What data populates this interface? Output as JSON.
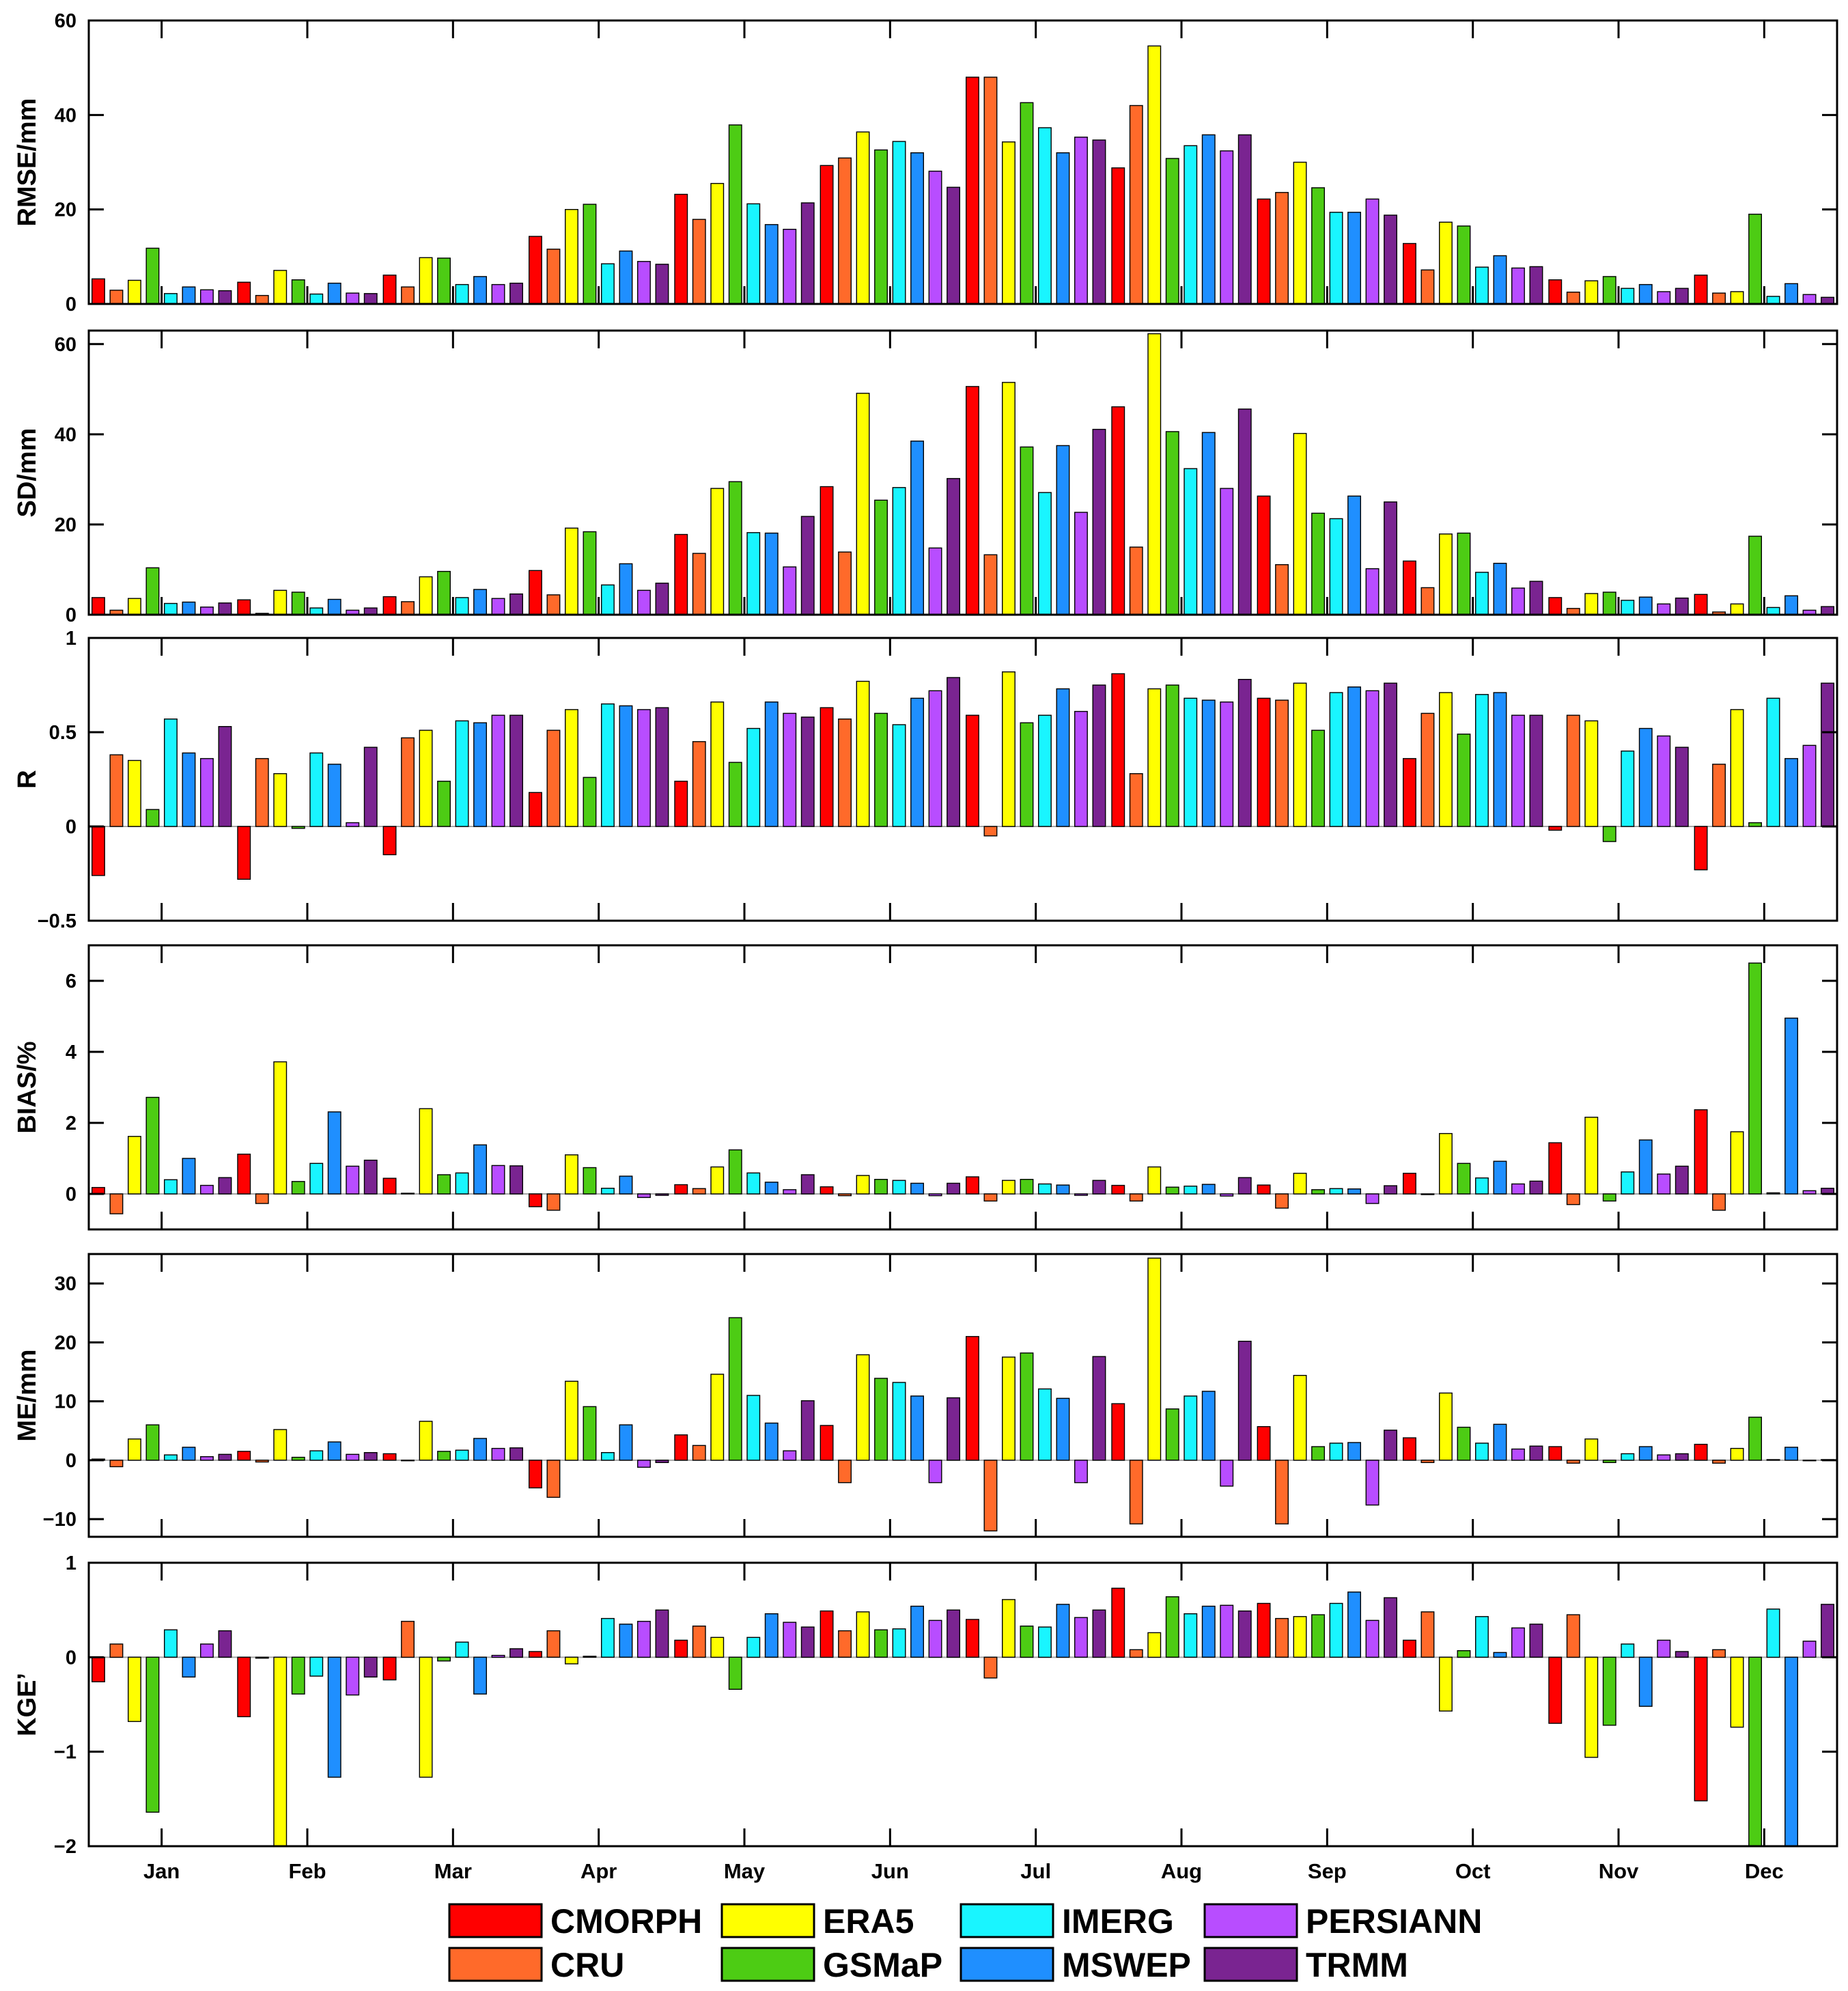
{
  "chart_data": [
    {
      "type": "bar",
      "panel": "rmse",
      "ylabel": "RMSE/mm",
      "ylim": [
        0,
        60
      ],
      "yticks": [
        0,
        20,
        40,
        60
      ],
      "ytick_labels": [
        "0",
        "20",
        "40",
        "60"
      ],
      "categories": [
        "Jan",
        "Feb",
        "Mar",
        "Apr",
        "May",
        "Jun",
        "Jul",
        "Aug",
        "Sep",
        "Oct",
        "Nov",
        "Dec"
      ],
      "series": [
        {
          "name": "CMORPH",
          "values": [
            5.3,
            4.6,
            6.1,
            14.3,
            23.2,
            29.3,
            48.0,
            28.8,
            22.2,
            12.8,
            5.1,
            6.1
          ]
        },
        {
          "name": "CRU",
          "values": [
            2.9,
            1.8,
            3.6,
            11.6,
            17.9,
            30.9,
            48.0,
            42.0,
            23.6,
            7.2,
            2.5,
            2.3
          ]
        },
        {
          "name": "ERA5",
          "values": [
            5.0,
            7.1,
            9.8,
            20.0,
            25.5,
            36.4,
            34.3,
            54.6,
            30.0,
            17.3,
            4.9,
            2.6
          ]
        },
        {
          "name": "GSMaP",
          "values": [
            11.8,
            5.1,
            9.7,
            21.1,
            37.9,
            32.6,
            42.6,
            30.8,
            24.6,
            16.5,
            5.8,
            19.0
          ]
        },
        {
          "name": "IMERG",
          "values": [
            2.2,
            2.1,
            4.1,
            8.5,
            21.2,
            34.4,
            37.3,
            33.5,
            19.4,
            7.8,
            3.3,
            1.6
          ]
        },
        {
          "name": "MSWEP",
          "values": [
            3.6,
            4.4,
            5.8,
            11.2,
            16.8,
            32.0,
            32.0,
            35.8,
            19.4,
            10.2,
            4.1,
            4.3
          ]
        },
        {
          "name": "PERSIANN",
          "values": [
            3.0,
            2.3,
            4.1,
            9.0,
            15.8,
            28.1,
            35.3,
            32.4,
            22.2,
            7.6,
            2.6,
            2.0
          ]
        },
        {
          "name": "TRMM",
          "values": [
            2.8,
            2.2,
            4.4,
            8.4,
            21.4,
            24.7,
            34.7,
            35.8,
            18.8,
            7.9,
            3.3,
            1.4
          ]
        }
      ]
    },
    {
      "type": "bar",
      "panel": "sd",
      "ylabel": "SD/mm",
      "ylim": [
        0,
        63
      ],
      "yticks": [
        0,
        20,
        40,
        60
      ],
      "ytick_labels": [
        "0",
        "20",
        "40",
        "60"
      ],
      "categories": [
        "Jan",
        "Feb",
        "Mar",
        "Apr",
        "May",
        "Jun",
        "Jul",
        "Aug",
        "Sep",
        "Oct",
        "Nov",
        "Dec"
      ],
      "series": [
        {
          "name": "CMORPH",
          "values": [
            3.8,
            3.3,
            4.0,
            9.8,
            17.8,
            28.4,
            50.6,
            46.1,
            26.3,
            11.9,
            3.8,
            4.5
          ]
        },
        {
          "name": "CRU",
          "values": [
            1.0,
            0.3,
            2.9,
            4.4,
            13.6,
            13.9,
            13.3,
            15.0,
            11.1,
            6.0,
            1.4,
            0.6
          ]
        },
        {
          "name": "ERA5",
          "values": [
            3.6,
            5.4,
            8.4,
            19.2,
            28.0,
            49.1,
            51.5,
            62.3,
            40.2,
            17.9,
            4.7,
            2.4
          ]
        },
        {
          "name": "GSMaP",
          "values": [
            10.4,
            5.0,
            9.6,
            18.4,
            29.5,
            25.4,
            37.2,
            40.6,
            22.5,
            18.1,
            5.0,
            17.4
          ]
        },
        {
          "name": "IMERG",
          "values": [
            2.5,
            1.5,
            3.8,
            6.6,
            18.2,
            28.2,
            27.1,
            32.4,
            21.3,
            9.4,
            3.2,
            1.6
          ]
        },
        {
          "name": "MSWEP",
          "values": [
            2.8,
            3.4,
            5.6,
            11.3,
            18.1,
            38.5,
            37.5,
            40.4,
            26.3,
            11.4,
            3.9,
            4.2
          ]
        },
        {
          "name": "PERSIANN",
          "values": [
            1.7,
            1.0,
            3.6,
            5.4,
            10.6,
            14.8,
            22.7,
            28.0,
            10.2,
            5.9,
            2.4,
            1.0
          ]
        },
        {
          "name": "TRMM",
          "values": [
            2.6,
            1.5,
            4.6,
            7.0,
            21.8,
            30.2,
            41.1,
            45.6,
            25.0,
            7.4,
            3.7,
            1.8
          ]
        }
      ]
    },
    {
      "type": "bar",
      "panel": "r",
      "ylabel": "R",
      "ylim": [
        -0.5,
        1
      ],
      "yticks": [
        -0.5,
        0,
        0.5,
        1
      ],
      "ytick_labels": [
        "−0.5",
        "0",
        "0.5",
        "1"
      ],
      "categories": [
        "Jan",
        "Feb",
        "Mar",
        "Apr",
        "May",
        "Jun",
        "Jul",
        "Aug",
        "Sep",
        "Oct",
        "Nov",
        "Dec"
      ],
      "series": [
        {
          "name": "CMORPH",
          "values": [
            -0.26,
            -0.28,
            -0.15,
            0.18,
            0.24,
            0.63,
            0.59,
            0.81,
            0.68,
            0.36,
            -0.02,
            -0.23
          ]
        },
        {
          "name": "CRU",
          "values": [
            0.38,
            0.36,
            0.47,
            0.51,
            0.45,
            0.57,
            -0.05,
            0.28,
            0.67,
            0.6,
            0.59,
            0.33
          ]
        },
        {
          "name": "ERA5",
          "values": [
            0.35,
            0.28,
            0.51,
            0.62,
            0.66,
            0.77,
            0.82,
            0.73,
            0.76,
            0.71,
            0.56,
            0.62
          ]
        },
        {
          "name": "GSMaP",
          "values": [
            0.09,
            -0.01,
            0.24,
            0.26,
            0.34,
            0.6,
            0.55,
            0.75,
            0.51,
            0.49,
            -0.08,
            0.02
          ]
        },
        {
          "name": "IMERG",
          "values": [
            0.57,
            0.39,
            0.56,
            0.65,
            0.52,
            0.54,
            0.59,
            0.68,
            0.71,
            0.7,
            0.4,
            0.68
          ]
        },
        {
          "name": "MSWEP",
          "values": [
            0.39,
            0.33,
            0.55,
            0.64,
            0.66,
            0.68,
            0.73,
            0.67,
            0.74,
            0.71,
            0.52,
            0.36
          ]
        },
        {
          "name": "PERSIANN",
          "values": [
            0.36,
            0.02,
            0.59,
            0.62,
            0.6,
            0.72,
            0.61,
            0.66,
            0.72,
            0.59,
            0.48,
            0.43
          ]
        },
        {
          "name": "TRMM",
          "values": [
            0.53,
            0.42,
            0.59,
            0.63,
            0.58,
            0.79,
            0.75,
            0.78,
            0.76,
            0.59,
            0.42,
            0.76
          ]
        }
      ]
    },
    {
      "type": "bar",
      "panel": "bias",
      "ylabel": "BIAS/%",
      "ylim": [
        -1,
        7
      ],
      "yticks": [
        0,
        2,
        4,
        6
      ],
      "ytick_labels": [
        "0",
        "2",
        "4",
        "6"
      ],
      "categories": [
        "Jan",
        "Feb",
        "Mar",
        "Apr",
        "May",
        "Jun",
        "Jul",
        "Aug",
        "Sep",
        "Oct",
        "Nov",
        "Dec"
      ],
      "series": [
        {
          "name": "CMORPH",
          "values": [
            0.18,
            1.12,
            0.44,
            -0.36,
            0.26,
            0.2,
            0.48,
            0.24,
            0.25,
            0.58,
            1.44,
            2.37
          ]
        },
        {
          "name": "CRU",
          "values": [
            -0.56,
            -0.27,
            0.02,
            -0.46,
            0.15,
            -0.05,
            -0.2,
            -0.2,
            -0.4,
            -0.02,
            -0.3,
            -0.46
          ]
        },
        {
          "name": "ERA5",
          "values": [
            1.62,
            3.72,
            2.4,
            1.1,
            0.76,
            0.52,
            0.38,
            0.76,
            0.58,
            1.7,
            2.16,
            1.75
          ]
        },
        {
          "name": "GSMaP",
          "values": [
            2.72,
            0.35,
            0.54,
            0.74,
            1.24,
            0.41,
            0.41,
            0.19,
            0.12,
            0.86,
            -0.2,
            6.5
          ]
        },
        {
          "name": "IMERG",
          "values": [
            0.4,
            0.86,
            0.59,
            0.16,
            0.59,
            0.38,
            0.28,
            0.22,
            0.15,
            0.45,
            0.62,
            0.03
          ]
        },
        {
          "name": "MSWEP",
          "values": [
            1.0,
            2.31,
            1.38,
            0.5,
            0.33,
            0.3,
            0.25,
            0.27,
            0.14,
            0.92,
            1.52,
            4.95
          ]
        },
        {
          "name": "PERSIANN",
          "values": [
            0.24,
            0.78,
            0.8,
            -0.1,
            0.12,
            -0.05,
            -0.04,
            -0.06,
            -0.27,
            0.28,
            0.56,
            0.09
          ]
        },
        {
          "name": "TRMM",
          "values": [
            0.46,
            0.95,
            0.79,
            -0.04,
            0.54,
            0.3,
            0.38,
            0.46,
            0.23,
            0.36,
            0.78,
            0.16
          ]
        }
      ]
    },
    {
      "type": "bar",
      "panel": "me",
      "ylabel": "ME/mm",
      "ylim": [
        -13,
        35
      ],
      "yticks": [
        -10,
        0,
        10,
        20,
        30
      ],
      "ytick_labels": [
        "−10",
        "0",
        "10",
        "20",
        "30"
      ],
      "categories": [
        "Jan",
        "Feb",
        "Mar",
        "Apr",
        "May",
        "Jun",
        "Jul",
        "Aug",
        "Sep",
        "Oct",
        "Nov",
        "Dec"
      ],
      "series": [
        {
          "name": "CMORPH",
          "values": [
            0.2,
            1.5,
            1.1,
            -4.7,
            4.3,
            5.9,
            21.0,
            9.6,
            5.7,
            3.8,
            2.3,
            2.7
          ]
        },
        {
          "name": "CRU",
          "values": [
            -1.1,
            -0.3,
            0.0,
            -6.3,
            2.5,
            -3.8,
            -12.0,
            -10.8,
            -10.8,
            -0.4,
            -0.5,
            -0.5
          ]
        },
        {
          "name": "ERA5",
          "values": [
            3.6,
            5.2,
            6.6,
            13.4,
            14.6,
            17.9,
            17.5,
            34.3,
            14.4,
            11.4,
            3.6,
            2.0
          ]
        },
        {
          "name": "GSMaP",
          "values": [
            6.0,
            0.5,
            1.5,
            9.1,
            24.2,
            13.9,
            18.2,
            8.7,
            2.3,
            5.6,
            -0.4,
            7.3
          ]
        },
        {
          "name": "IMERG",
          "values": [
            0.9,
            1.6,
            1.7,
            1.3,
            11.0,
            13.2,
            12.1,
            10.9,
            2.9,
            2.9,
            1.1,
            0.1
          ]
        },
        {
          "name": "MSWEP",
          "values": [
            2.2,
            3.1,
            3.7,
            6.0,
            6.3,
            10.9,
            10.5,
            11.7,
            3.0,
            6.1,
            2.3,
            2.2
          ]
        },
        {
          "name": "PERSIANN",
          "values": [
            0.6,
            1.0,
            2.0,
            -1.2,
            1.6,
            -3.8,
            -3.8,
            -4.4,
            -7.6,
            1.9,
            0.9,
            0.0
          ]
        },
        {
          "name": "TRMM",
          "values": [
            1.0,
            1.3,
            2.1,
            -0.4,
            10.1,
            10.6,
            17.6,
            20.2,
            5.1,
            2.4,
            1.1,
            0.1
          ]
        }
      ]
    },
    {
      "type": "bar",
      "panel": "kge",
      "ylabel": "KGE’",
      "ylim": [
        -2,
        1
      ],
      "yticks": [
        -2,
        -1,
        0,
        1
      ],
      "ytick_labels": [
        "−2",
        "−1",
        "0",
        "1"
      ],
      "categories": [
        "Jan",
        "Feb",
        "Mar",
        "Apr",
        "May",
        "Jun",
        "Jul",
        "Aug",
        "Sep",
        "Oct",
        "Nov",
        "Dec"
      ],
      "series": [
        {
          "name": "CMORPH",
          "values": [
            -0.26,
            -0.63,
            -0.24,
            0.06,
            0.18,
            0.49,
            0.4,
            0.73,
            0.57,
            0.18,
            -0.7,
            -1.52
          ]
        },
        {
          "name": "CRU",
          "values": [
            0.14,
            -0.01,
            0.38,
            0.28,
            0.33,
            0.28,
            -0.22,
            0.08,
            0.41,
            0.48,
            0.45,
            0.08
          ]
        },
        {
          "name": "ERA5",
          "values": [
            -0.68,
            -2.0,
            -1.27,
            -0.07,
            0.21,
            0.48,
            0.61,
            0.26,
            0.43,
            -0.57,
            -1.06,
            -0.74
          ]
        },
        {
          "name": "GSMaP",
          "values": [
            -1.64,
            -0.39,
            -0.04,
            0.01,
            -0.34,
            0.29,
            0.33,
            0.64,
            0.45,
            0.07,
            -0.72,
            -2.0
          ]
        },
        {
          "name": "IMERG",
          "values": [
            0.29,
            -0.2,
            0.16,
            0.41,
            0.21,
            0.3,
            0.32,
            0.46,
            0.57,
            0.43,
            0.14,
            0.51
          ]
        },
        {
          "name": "MSWEP",
          "values": [
            -0.21,
            -1.27,
            -0.39,
            0.35,
            0.46,
            0.54,
            0.56,
            0.54,
            0.69,
            0.05,
            -0.52,
            -2.0
          ]
        },
        {
          "name": "PERSIANN",
          "values": [
            0.14,
            -0.4,
            0.02,
            0.38,
            0.37,
            0.39,
            0.42,
            0.55,
            0.39,
            0.31,
            0.18,
            0.17
          ]
        },
        {
          "name": "TRMM",
          "values": [
            0.28,
            -0.21,
            0.09,
            0.5,
            0.32,
            0.5,
            0.5,
            0.49,
            0.63,
            0.35,
            0.06,
            0.56
          ]
        }
      ]
    }
  ],
  "legend": {
    "items": [
      {
        "name": "CMORPH",
        "color": "#FF0000"
      },
      {
        "name": "CRU",
        "color": "#FF6A2A"
      },
      {
        "name": "ERA5",
        "color": "#FFFF00"
      },
      {
        "name": "GSMaP",
        "color": "#4DCC14"
      },
      {
        "name": "IMERG",
        "color": "#19F5FF"
      },
      {
        "name": "MSWEP",
        "color": "#1F8FFF"
      },
      {
        "name": "PERSIANN",
        "color": "#B84DFF"
      },
      {
        "name": "TRMM",
        "color": "#7A2491"
      }
    ]
  }
}
